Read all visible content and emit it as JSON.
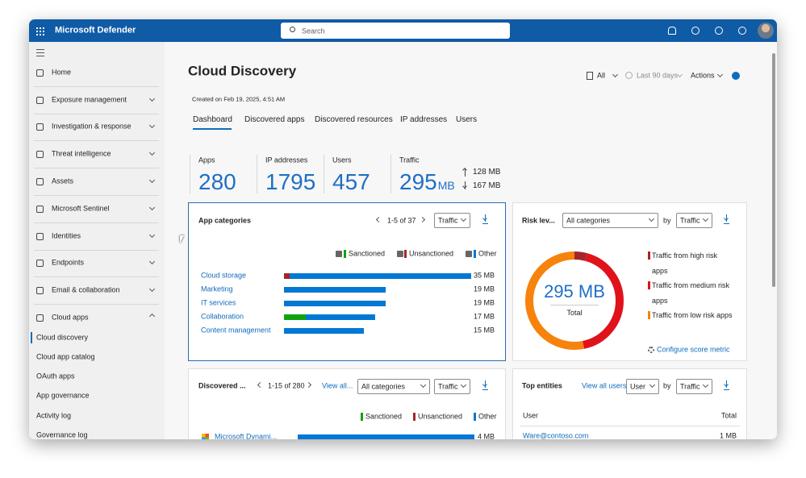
{
  "header": {
    "product": "Microsoft Defender",
    "search_placeholder": "Search"
  },
  "nav": {
    "items": [
      "Home",
      "Exposure management",
      "Investigation & response",
      "Threat intelligence",
      "Assets",
      "Microsoft Sentinel",
      "Identities",
      "Endpoints",
      "Email & collaboration",
      "Cloud apps"
    ],
    "sub_items": [
      "Cloud discovery",
      "Cloud app catalog",
      "OAuth apps",
      "App governance",
      "Activity log",
      "Governance log"
    ]
  },
  "page": {
    "title": "Cloud Discovery",
    "created": "Created on Feb 19, 2025, 4:51 AM",
    "tabs": [
      "Dashboard",
      "Discovered apps",
      "Discovered resources",
      "IP addresses",
      "Users"
    ],
    "toolbar": [
      "All",
      "Last 90 days",
      "Actions"
    ]
  },
  "stats": [
    {
      "label": "Apps",
      "value": 280
    },
    {
      "label": "IP addresses",
      "value": 1795
    },
    {
      "label": "Users",
      "value": 457
    },
    {
      "label": "Traffic",
      "value": 295,
      "unit": "MB",
      "upload": "128 MB",
      "download": "167 MB"
    }
  ],
  "legend": [
    {
      "name": "Sanctioned",
      "color": "#13a10e"
    },
    {
      "name": "Unsanctioned",
      "color": "#a4262c"
    },
    {
      "name": "Other",
      "color": "#0078d4"
    }
  ],
  "app_categories": {
    "title": "App categories",
    "pager": "1-5 of 37",
    "metric": "Traffic",
    "rows": [
      {
        "name": "Cloud storage",
        "values": [
          0,
          1,
          34
        ],
        "total_label": "35 MB"
      },
      {
        "name": "Marketing",
        "values": [
          0,
          0,
          19
        ],
        "total_label": "19 MB"
      },
      {
        "name": "IT services",
        "values": [
          0,
          0,
          19
        ],
        "total_label": "19 MB"
      },
      {
        "name": "Collaboration",
        "values": [
          4,
          0,
          13
        ],
        "total_label": "17 MB"
      },
      {
        "name": "Content management",
        "values": [
          0,
          0,
          15
        ],
        "total_label": "15 MB"
      }
    ]
  },
  "risk": {
    "title": "Risk lev...",
    "filter": "All categories",
    "by": "by",
    "metric": "Traffic",
    "total": "295 MB",
    "total_label": "Total",
    "segments": [
      {
        "name": "Traffic from high risk apps",
        "value": 12,
        "color": "#a4262c"
      },
      {
        "name": "Traffic from medium risk apps",
        "value": 126,
        "color": "#e0121b"
      },
      {
        "name": "Traffic from low risk apps",
        "value": 157,
        "color": "#f7820c"
      }
    ],
    "configure": "Configure score metric"
  },
  "discovered_apps": {
    "title": "Discovered ...",
    "pager": "1-15 of 280",
    "view_all": "View all...",
    "filter": "All categories",
    "metric": "Traffic",
    "rows": [
      {
        "name": "Microsoft Dynami...",
        "values": [
          0,
          0,
          4
        ],
        "total_label": "4 MB"
      }
    ]
  },
  "top_entities": {
    "title": "Top entities",
    "view_all": "View all users",
    "entity": "User",
    "by": "by",
    "metric": "Traffic",
    "columns": [
      "User",
      "Total"
    ],
    "rows": [
      [
        "Ware@contoso.com",
        "1 MB"
      ]
    ]
  }
}
